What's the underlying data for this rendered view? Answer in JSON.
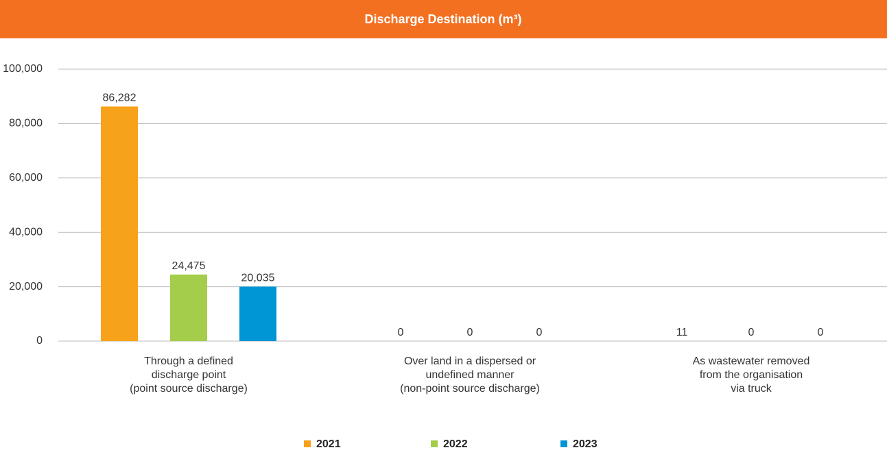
{
  "chart_data": {
    "type": "bar",
    "title": "Discharge Destination (m³)",
    "categories": [
      "Through a defined\ndischarge point\n(point source discharge)",
      "Over land in a dispersed or\nundefined manner\n(non-point source discharge)",
      "As wastewater removed\nfrom the organisation\nvia truck"
    ],
    "series": [
      {
        "name": "2021",
        "color": "#f7a21b",
        "values": [
          86282,
          0,
          11
        ],
        "value_labels": [
          "86,282",
          "0",
          "11"
        ]
      },
      {
        "name": "2022",
        "color": "#a3cd4a",
        "values": [
          24475,
          0,
          0
        ],
        "value_labels": [
          "24,475",
          "0",
          "0"
        ]
      },
      {
        "name": "2023",
        "color": "#0096d6",
        "values": [
          20035,
          0,
          0
        ],
        "value_labels": [
          "20,035",
          "0",
          "0"
        ]
      }
    ],
    "ylim": [
      0,
      100000
    ],
    "yticks": [
      0,
      {
        "value": 20000,
        "label": "20,000"
      },
      {
        "value": 40000,
        "label": "40,000"
      },
      {
        "value": 60000,
        "label": "60,000"
      },
      {
        "value": 80000,
        "label": "80,000"
      },
      {
        "value": 100000,
        "label": "100,000"
      }
    ],
    "grid": true,
    "legend": "bottom"
  }
}
